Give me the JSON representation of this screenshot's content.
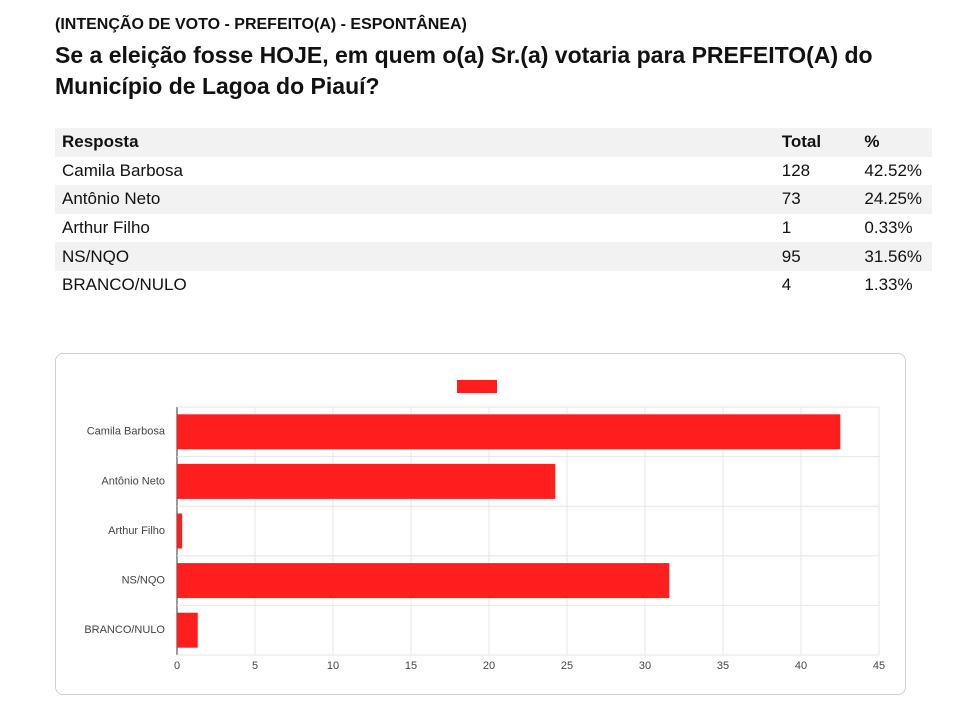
{
  "header": {
    "subtitle": "(INTENÇÃO DE VOTO - PREFEITO(A) - ESPONTÂNEA)",
    "title": "Se a eleição fosse HOJE, em quem o(a) Sr.(a) votaria para PREFEITO(A) do Município de Lagoa do Piauí?"
  },
  "table": {
    "columns": [
      "Resposta",
      "Total",
      "%"
    ],
    "rows": [
      [
        "Camila Barbosa",
        "128",
        "42.52%"
      ],
      [
        "Antônio Neto",
        "73",
        "24.25%"
      ],
      [
        "Arthur Filho",
        "1",
        "0.33%"
      ],
      [
        "NS/NQO",
        "95",
        "31.56%"
      ],
      [
        "BRANCO/NULO",
        "4",
        "1.33%"
      ]
    ]
  },
  "chart_data": {
    "type": "bar",
    "orientation": "horizontal",
    "categories": [
      "Camila Barbosa",
      "Antônio Neto",
      "Arthur Filho",
      "NS/NQO",
      "BRANCO/NULO"
    ],
    "values": [
      42.52,
      24.25,
      0.33,
      31.56,
      1.33
    ],
    "color": "#fe1e1e",
    "xlim": [
      0,
      45
    ],
    "xticks": [
      0,
      5,
      10,
      15,
      20,
      25,
      30,
      35,
      40,
      45
    ],
    "grid": true,
    "legend": "top"
  }
}
